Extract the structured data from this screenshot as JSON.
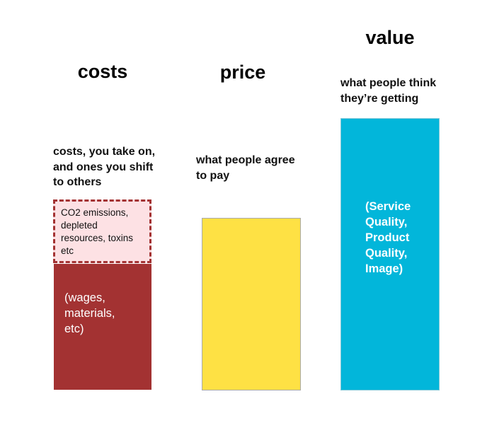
{
  "columns": [
    {
      "title": "costs",
      "subtitle_lines": [
        "costs, you take on,",
        "and ones you shift",
        "to others"
      ],
      "hidden_cost_lines": [
        "CO2 emissions,",
        "depleted",
        "resources, toxins",
        "etc"
      ],
      "bar_lines": [
        "(wages,",
        "materials,",
        "etc)"
      ]
    },
    {
      "title": "price",
      "subtitle_lines": [
        "what people agree",
        "to pay"
      ]
    },
    {
      "title": "value",
      "subtitle_lines": [
        "what people think",
        "they’re getting"
      ],
      "bar_lines": [
        "(Service",
        "Quality,",
        "Product",
        "Quality,",
        "Image)"
      ]
    }
  ]
}
